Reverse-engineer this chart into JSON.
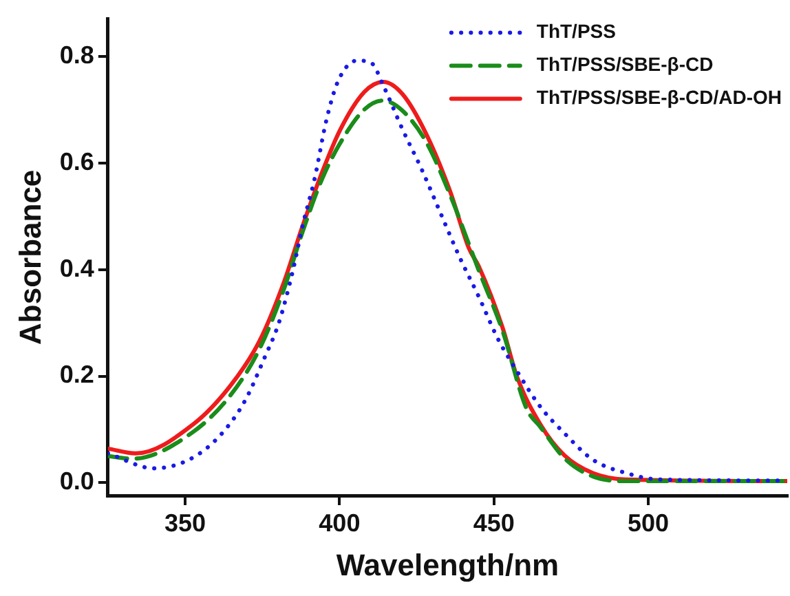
{
  "chart_data": {
    "type": "line",
    "xlabel": "Wavelength/nm",
    "ylabel": "Absorbance",
    "xlim": [
      325,
      545
    ],
    "xticks": [
      350,
      400,
      450,
      500
    ],
    "ylim": [
      -0.024,
      0.87
    ],
    "yticks": [
      {
        "value": 0,
        "label": "0.0"
      },
      0.2,
      0.4,
      0.6,
      0.8
    ],
    "grid": false,
    "legend": "top right",
    "marker": "none",
    "series": [
      {
        "name": "ThT/PSS",
        "color": "#1a1ae6",
        "line_style": "dotted",
        "x": [
          325,
          340,
          352.5,
          362,
          369.5,
          375.6,
          380.3,
          384.9,
          388,
          392,
          395.7,
          399.5,
          405.7,
          410.4,
          414.2,
          420.4,
          426.6,
          432.7,
          438.9,
          445.1,
          451.3,
          457.4,
          465.1,
          472.8,
          482.1,
          492.9,
          503.7,
          545
        ],
        "values": [
          0.055,
          0.027,
          0.047,
          0.093,
          0.155,
          0.233,
          0.299,
          0.398,
          0.481,
          0.572,
          0.679,
          0.753,
          0.792,
          0.787,
          0.745,
          0.663,
          0.588,
          0.506,
          0.423,
          0.349,
          0.27,
          0.21,
          0.142,
          0.093,
          0.043,
          0.018,
          0.006,
          0.004
        ]
      },
      {
        "name": "ThT/PSS/SBE-β-CD",
        "color": "#1a8c1a",
        "line_style": "dashed",
        "x": [
          325,
          333,
          352.5,
          364.8,
          374,
          381.8,
          388,
          394,
          400,
          408,
          414,
          420,
          428,
          435.8,
          445,
          452.8,
          460.5,
          465,
          473,
          482,
          493,
          545
        ],
        "values": [
          0.05,
          0.045,
          0.095,
          0.165,
          0.25,
          0.36,
          0.47,
          0.565,
          0.635,
          0.7,
          0.717,
          0.7,
          0.64,
          0.54,
          0.4,
          0.285,
          0.14,
          0.105,
          0.045,
          0.012,
          0.003,
          0.003
        ]
      },
      {
        "name": "ThT/PSS/SBE-β-CD/AD-OH",
        "color": "#ee1c1c",
        "line_style": "solid",
        "x": [
          325,
          334,
          352.5,
          364.8,
          374.1,
          381.8,
          388,
          394.2,
          400.3,
          408,
          414.2,
          420.4,
          428.1,
          435.8,
          441.9,
          445.1,
          452.8,
          457.4,
          465.1,
          472.9,
          482.1,
          492.9,
          545
        ],
        "values": [
          0.064,
          0.055,
          0.109,
          0.183,
          0.266,
          0.373,
          0.481,
          0.58,
          0.663,
          0.733,
          0.752,
          0.729,
          0.654,
          0.547,
          0.44,
          0.406,
          0.291,
          0.2,
          0.109,
          0.051,
          0.018,
          0.006,
          0.003
        ]
      }
    ]
  }
}
